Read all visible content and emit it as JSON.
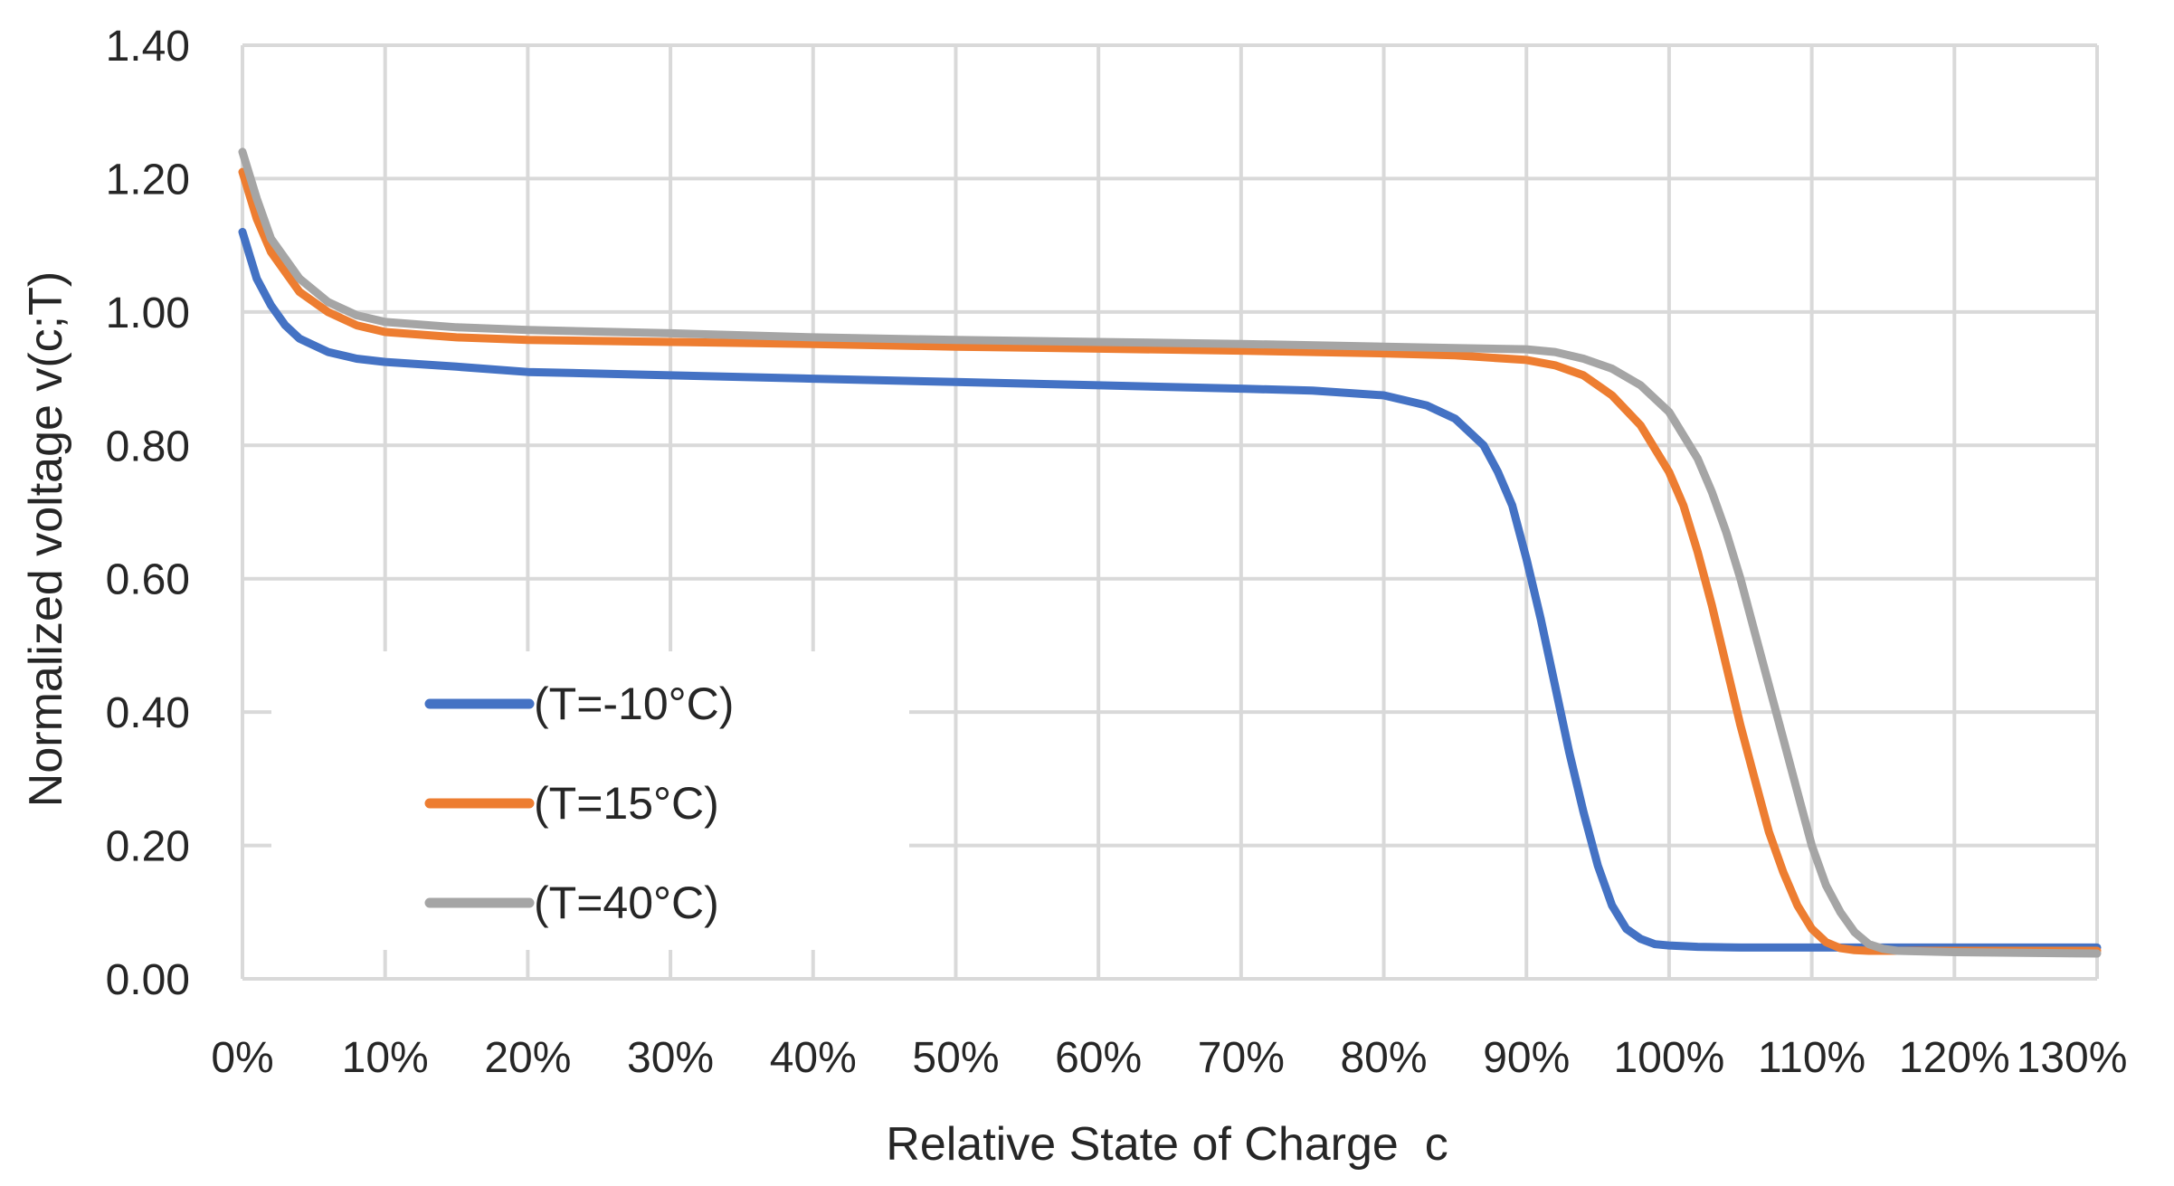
{
  "chart_data": {
    "type": "line",
    "title": "",
    "xlabel": "Relative State of Charge  c",
    "ylabel": "Normalized voltage v(c;T)",
    "xlim": [
      0,
      130
    ],
    "ylim": [
      0,
      1.4
    ],
    "x_ticks": [
      0,
      10,
      20,
      30,
      40,
      50,
      60,
      70,
      80,
      90,
      100,
      110,
      120,
      130
    ],
    "x_tick_labels": [
      "0%",
      "10%",
      "20%",
      "30%",
      "40%",
      "50%",
      "60%",
      "70%",
      "80%",
      "90%",
      "100%",
      "110%",
      "120%",
      "130%"
    ],
    "y_ticks": [
      0,
      0.2,
      0.4,
      0.6,
      0.8,
      1.0,
      1.2,
      1.4
    ],
    "y_tick_labels": [
      "0.00",
      "0.20",
      "0.40",
      "0.60",
      "0.80",
      "1.00",
      "1.20",
      "1.40"
    ],
    "grid": true,
    "legend_position": "bottom-left",
    "series": [
      {
        "name": "(T=-10°C)",
        "color": "#4472c4",
        "x": [
          0,
          1,
          2,
          3,
          4,
          6,
          8,
          10,
          15,
          20,
          30,
          40,
          50,
          60,
          70,
          75,
          80,
          83,
          85,
          87,
          88,
          89,
          90,
          91,
          92,
          93,
          94,
          95,
          96,
          97,
          98,
          99,
          100,
          102,
          105,
          110,
          120,
          130
        ],
        "y": [
          1.12,
          1.05,
          1.01,
          0.98,
          0.96,
          0.94,
          0.93,
          0.925,
          0.918,
          0.91,
          0.905,
          0.9,
          0.895,
          0.89,
          0.885,
          0.882,
          0.875,
          0.86,
          0.84,
          0.8,
          0.76,
          0.71,
          0.63,
          0.54,
          0.44,
          0.34,
          0.25,
          0.17,
          0.11,
          0.075,
          0.06,
          0.052,
          0.05,
          0.048,
          0.047,
          0.047,
          0.047,
          0.047
        ]
      },
      {
        "name": "(T=15°C)",
        "color": "#ed7d31",
        "x": [
          0,
          1,
          2,
          4,
          6,
          8,
          10,
          15,
          20,
          30,
          40,
          50,
          60,
          70,
          80,
          85,
          90,
          92,
          94,
          96,
          98,
          100,
          101,
          102,
          103,
          104,
          105,
          106,
          107,
          108,
          109,
          110,
          111,
          112,
          113,
          114,
          115,
          120,
          130
        ],
        "y": [
          1.21,
          1.14,
          1.09,
          1.03,
          1.0,
          0.98,
          0.97,
          0.962,
          0.958,
          0.955,
          0.952,
          0.948,
          0.945,
          0.942,
          0.938,
          0.935,
          0.928,
          0.92,
          0.905,
          0.875,
          0.83,
          0.76,
          0.71,
          0.64,
          0.56,
          0.47,
          0.38,
          0.3,
          0.22,
          0.16,
          0.11,
          0.075,
          0.055,
          0.046,
          0.043,
          0.042,
          0.042,
          0.042,
          0.042
        ]
      },
      {
        "name": "(T=40°C)",
        "color": "#a5a5a5",
        "x": [
          0,
          1,
          2,
          4,
          6,
          8,
          10,
          15,
          20,
          30,
          40,
          50,
          60,
          70,
          80,
          85,
          90,
          92,
          94,
          96,
          98,
          100,
          102,
          103,
          104,
          105,
          106,
          107,
          108,
          109,
          110,
          111,
          112,
          113,
          114,
          115,
          116,
          120,
          130
        ],
        "y": [
          1.24,
          1.17,
          1.11,
          1.05,
          1.015,
          0.995,
          0.985,
          0.977,
          0.973,
          0.968,
          0.962,
          0.958,
          0.955,
          0.952,
          0.948,
          0.946,
          0.944,
          0.94,
          0.93,
          0.915,
          0.89,
          0.85,
          0.78,
          0.73,
          0.67,
          0.6,
          0.52,
          0.44,
          0.36,
          0.28,
          0.2,
          0.14,
          0.1,
          0.07,
          0.052,
          0.045,
          0.042,
          0.04,
          0.038
        ]
      }
    ]
  }
}
